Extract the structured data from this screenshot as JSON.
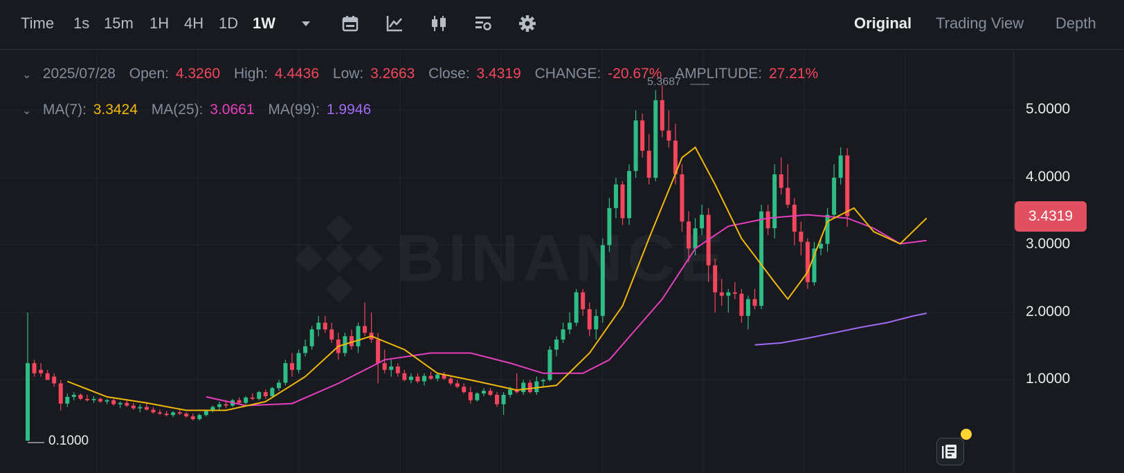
{
  "toolbar": {
    "intervals": [
      {
        "label": "Time",
        "active": false
      },
      {
        "label": "1s",
        "active": false
      },
      {
        "label": "15m",
        "active": false
      },
      {
        "label": "1H",
        "active": false
      },
      {
        "label": "4H",
        "active": false
      },
      {
        "label": "1D",
        "active": false
      },
      {
        "label": "1W",
        "active": true
      }
    ],
    "icons": [
      "caret-down-icon",
      "calendar-icon",
      "indicator-icon",
      "candlestick-type-icon",
      "chart-settings-icon",
      "gear-icon"
    ],
    "views": [
      {
        "label": "Original",
        "active": true
      },
      {
        "label": "Trading View",
        "active": false
      },
      {
        "label": "Depth",
        "active": false
      }
    ]
  },
  "ohlc": {
    "date": "2025/07/28",
    "open_label": "Open:",
    "open": "4.3260",
    "high_label": "High:",
    "high": "4.4436",
    "low_label": "Low:",
    "low": "3.2663",
    "close_label": "Close:",
    "close": "3.4319",
    "change_label": "CHANGE:",
    "change": "-20.67%",
    "amplitude_label": "AMPLITUDE:",
    "amplitude": "27.21%"
  },
  "ma": {
    "ma7_label": "MA(7):",
    "ma7": "3.3424",
    "ma25_label": "MA(25):",
    "ma25": "3.0661",
    "ma99_label": "MA(99):",
    "ma99": "1.9946"
  },
  "axis": {
    "ticks": [
      "5.0000",
      "4.0000",
      "3.0000",
      "2.0000",
      "1.0000"
    ],
    "current_price": "3.4319",
    "chart_low": "0.1000",
    "chart_high": "5.3687"
  },
  "watermark": "BINANCE",
  "colors": {
    "up": "#2ebd85",
    "down": "#f6465d",
    "ma7": "#f0b90b",
    "ma25": "#e63fbf",
    "ma99": "#a06bf4",
    "background": "#181a20",
    "badge": "#e05060"
  },
  "chart_data": {
    "type": "candlestick",
    "interval": "1W",
    "ylim": [
      0,
      5.6
    ],
    "candles": [
      [
        0.1,
        2.0,
        0.1,
        1.25
      ],
      [
        1.25,
        1.3,
        1.05,
        1.1
      ],
      [
        1.15,
        1.25,
        1.05,
        1.1
      ],
      [
        1.1,
        1.15,
        1.0,
        1.0
      ],
      [
        1.05,
        1.1,
        0.9,
        0.95
      ],
      [
        0.95,
        1.0,
        0.55,
        0.65
      ],
      [
        0.65,
        0.8,
        0.6,
        0.75
      ],
      [
        0.75,
        0.82,
        0.7,
        0.78
      ],
      [
        0.78,
        0.8,
        0.7,
        0.72
      ],
      [
        0.72,
        0.78,
        0.68,
        0.7
      ],
      [
        0.7,
        0.76,
        0.66,
        0.72
      ],
      [
        0.72,
        0.74,
        0.66,
        0.68
      ],
      [
        0.68,
        0.72,
        0.64,
        0.7
      ],
      [
        0.7,
        0.72,
        0.62,
        0.64
      ],
      [
        0.64,
        0.68,
        0.58,
        0.66
      ],
      [
        0.66,
        0.7,
        0.6,
        0.62
      ],
      [
        0.62,
        0.66,
        0.56,
        0.58
      ],
      [
        0.58,
        0.64,
        0.52,
        0.6
      ],
      [
        0.6,
        0.66,
        0.55,
        0.56
      ],
      [
        0.56,
        0.6,
        0.5,
        0.52
      ],
      [
        0.52,
        0.56,
        0.48,
        0.5
      ],
      [
        0.5,
        0.54,
        0.46,
        0.48
      ],
      [
        0.48,
        0.54,
        0.45,
        0.52
      ],
      [
        0.52,
        0.56,
        0.48,
        0.5
      ],
      [
        0.5,
        0.52,
        0.44,
        0.46
      ],
      [
        0.46,
        0.5,
        0.4,
        0.42
      ],
      [
        0.42,
        0.5,
        0.4,
        0.48
      ],
      [
        0.48,
        0.56,
        0.46,
        0.54
      ],
      [
        0.54,
        0.62,
        0.52,
        0.6
      ],
      [
        0.6,
        0.68,
        0.55,
        0.64
      ],
      [
        0.64,
        0.7,
        0.58,
        0.62
      ],
      [
        0.62,
        0.72,
        0.6,
        0.7
      ],
      [
        0.7,
        0.74,
        0.64,
        0.66
      ],
      [
        0.66,
        0.76,
        0.64,
        0.74
      ],
      [
        0.74,
        0.8,
        0.7,
        0.72
      ],
      [
        0.72,
        0.84,
        0.7,
        0.82
      ],
      [
        0.82,
        0.86,
        0.72,
        0.76
      ],
      [
        0.76,
        0.9,
        0.74,
        0.88
      ],
      [
        0.88,
        1.0,
        0.84,
        0.96
      ],
      [
        0.96,
        1.3,
        0.92,
        1.25
      ],
      [
        1.25,
        1.4,
        1.05,
        1.15
      ],
      [
        1.15,
        1.45,
        1.1,
        1.4
      ],
      [
        1.4,
        1.6,
        1.35,
        1.5
      ],
      [
        1.5,
        1.8,
        1.45,
        1.75
      ],
      [
        1.75,
        1.95,
        1.65,
        1.85
      ],
      [
        1.85,
        1.95,
        1.7,
        1.75
      ],
      [
        1.75,
        1.85,
        1.55,
        1.6
      ],
      [
        1.6,
        1.7,
        1.3,
        1.4
      ],
      [
        1.4,
        1.7,
        1.35,
        1.65
      ],
      [
        1.65,
        1.75,
        1.45,
        1.5
      ],
      [
        1.5,
        1.85,
        1.4,
        1.8
      ],
      [
        1.8,
        2.15,
        1.65,
        1.7
      ],
      [
        1.7,
        2.0,
        1.55,
        1.6
      ],
      [
        1.6,
        1.7,
        0.95,
        1.25
      ],
      [
        1.25,
        1.45,
        1.1,
        1.15
      ],
      [
        1.15,
        1.3,
        1.05,
        1.2
      ],
      [
        1.2,
        1.25,
        1.05,
        1.1
      ],
      [
        1.1,
        1.15,
        0.98,
        1.0
      ],
      [
        1.0,
        1.1,
        0.95,
        1.05
      ],
      [
        1.05,
        1.1,
        0.95,
        0.98
      ],
      [
        0.98,
        1.1,
        0.92,
        1.06
      ],
      [
        1.06,
        1.12,
        1.0,
        1.02
      ],
      [
        1.02,
        1.1,
        0.98,
        1.08
      ],
      [
        1.08,
        1.12,
        1.0,
        1.02
      ],
      [
        1.02,
        1.06,
        0.92,
        0.95
      ],
      [
        0.95,
        1.0,
        0.88,
        0.9
      ],
      [
        0.9,
        0.95,
        0.8,
        0.82
      ],
      [
        0.82,
        0.9,
        0.65,
        0.7
      ],
      [
        0.7,
        0.82,
        0.68,
        0.8
      ],
      [
        0.8,
        0.88,
        0.76,
        0.84
      ],
      [
        0.84,
        0.88,
        0.76,
        0.78
      ],
      [
        0.78,
        0.82,
        0.6,
        0.64
      ],
      [
        0.64,
        0.82,
        0.48,
        0.78
      ],
      [
        0.78,
        0.9,
        0.74,
        0.86
      ],
      [
        0.86,
        1.1,
        0.8,
        0.82
      ],
      [
        0.82,
        1.0,
        0.78,
        0.96
      ],
      [
        0.96,
        1.0,
        0.8,
        0.82
      ],
      [
        0.82,
        1.05,
        0.78,
        0.98
      ],
      [
        0.98,
        1.02,
        0.9,
        1.0
      ],
      [
        1.0,
        1.5,
        0.98,
        1.45
      ],
      [
        1.45,
        1.65,
        1.35,
        1.6
      ],
      [
        1.6,
        1.85,
        1.55,
        1.75
      ],
      [
        1.75,
        2.0,
        1.68,
        1.85
      ],
      [
        1.85,
        2.35,
        1.8,
        2.3
      ],
      [
        2.3,
        2.35,
        1.95,
        2.05
      ],
      [
        2.05,
        2.15,
        1.65,
        1.75
      ],
      [
        1.75,
        2.05,
        1.6,
        1.95
      ],
      [
        1.95,
        3.1,
        1.85,
        3.0
      ],
      [
        3.0,
        3.7,
        2.9,
        3.55
      ],
      [
        3.55,
        4.0,
        3.4,
        3.9
      ],
      [
        3.9,
        3.95,
        3.3,
        3.4
      ],
      [
        3.4,
        4.2,
        3.3,
        4.1
      ],
      [
        4.1,
        5.0,
        4.0,
        4.85
      ],
      [
        4.85,
        4.95,
        4.3,
        4.4
      ],
      [
        4.4,
        4.65,
        3.9,
        4.0
      ],
      [
        4.0,
        5.3,
        3.95,
        5.15
      ],
      [
        5.15,
        5.37,
        4.6,
        4.7
      ],
      [
        4.7,
        5.0,
        4.45,
        4.55
      ],
      [
        4.55,
        4.8,
        3.9,
        4.05
      ],
      [
        4.05,
        4.2,
        3.2,
        3.35
      ],
      [
        3.35,
        3.5,
        2.75,
        2.95
      ],
      [
        2.95,
        3.4,
        2.85,
        3.25
      ],
      [
        3.25,
        3.6,
        3.15,
        3.45
      ],
      [
        3.45,
        3.55,
        2.45,
        2.7
      ],
      [
        2.7,
        2.8,
        2.0,
        2.3
      ],
      [
        2.3,
        2.5,
        2.1,
        2.25
      ],
      [
        2.25,
        2.35,
        2.0,
        2.3
      ],
      [
        2.3,
        2.45,
        2.2,
        2.28
      ],
      [
        2.28,
        2.35,
        1.85,
        1.95
      ],
      [
        1.95,
        2.25,
        1.75,
        2.2
      ],
      [
        2.2,
        2.35,
        2.05,
        2.1
      ],
      [
        2.1,
        3.6,
        2.05,
        3.5
      ],
      [
        3.5,
        3.6,
        3.15,
        3.25
      ],
      [
        3.25,
        4.2,
        3.1,
        4.05
      ],
      [
        4.05,
        4.3,
        3.75,
        3.85
      ],
      [
        3.85,
        4.2,
        3.55,
        3.6
      ],
      [
        3.6,
        3.7,
        3.0,
        3.2
      ],
      [
        3.2,
        3.35,
        2.85,
        3.05
      ],
      [
        3.05,
        3.1,
        2.35,
        2.45
      ],
      [
        2.45,
        3.05,
        2.4,
        2.95
      ],
      [
        2.95,
        3.1,
        2.85,
        3.02
      ],
      [
        3.02,
        3.55,
        2.9,
        3.45
      ],
      [
        3.45,
        4.2,
        3.4,
        4.0
      ],
      [
        4.0,
        4.45,
        3.9,
        4.33
      ],
      [
        4.33,
        4.44,
        3.27,
        3.43
      ]
    ],
    "ma7": [
      [
        6,
        0.98
      ],
      [
        12,
        0.75
      ],
      [
        18,
        0.66
      ],
      [
        24,
        0.55
      ],
      [
        30,
        0.55
      ],
      [
        36,
        0.68
      ],
      [
        42,
        1.05
      ],
      [
        47,
        1.5
      ],
      [
        52,
        1.65
      ],
      [
        57,
        1.45
      ],
      [
        62,
        1.1
      ],
      [
        68,
        0.98
      ],
      [
        74,
        0.85
      ],
      [
        80,
        0.92
      ],
      [
        85,
        1.4
      ],
      [
        90,
        2.1
      ],
      [
        94,
        3.1
      ],
      [
        99,
        4.3
      ],
      [
        101,
        4.45
      ],
      [
        104,
        3.9
      ],
      [
        108,
        3.1
      ],
      [
        113,
        2.45
      ],
      [
        115,
        2.2
      ],
      [
        118,
        2.6
      ],
      [
        121,
        3.35
      ],
      [
        125,
        3.55
      ],
      [
        128,
        3.2
      ],
      [
        132,
        3.02
      ],
      [
        136,
        3.4
      ]
    ],
    "ma25": [
      [
        27,
        0.75
      ],
      [
        33,
        0.62
      ],
      [
        40,
        0.65
      ],
      [
        47,
        0.95
      ],
      [
        54,
        1.3
      ],
      [
        61,
        1.4
      ],
      [
        67,
        1.4
      ],
      [
        73,
        1.25
      ],
      [
        78,
        1.1
      ],
      [
        84,
        1.1
      ],
      [
        88,
        1.3
      ],
      [
        92,
        1.75
      ],
      [
        96,
        2.2
      ],
      [
        101,
        2.95
      ],
      [
        106,
        3.28
      ],
      [
        112,
        3.4
      ],
      [
        118,
        3.45
      ],
      [
        124,
        3.4
      ],
      [
        128,
        3.25
      ],
      [
        132,
        3.02
      ],
      [
        136,
        3.07
      ]
    ],
    "ma99": [
      [
        110,
        1.52
      ],
      [
        114,
        1.55
      ],
      [
        118,
        1.62
      ],
      [
        122,
        1.7
      ],
      [
        126,
        1.78
      ],
      [
        130,
        1.85
      ],
      [
        134,
        1.95
      ],
      [
        136,
        1.99
      ]
    ]
  }
}
